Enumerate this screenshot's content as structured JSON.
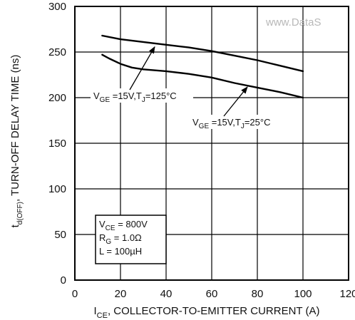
{
  "watermark": "www.DataS",
  "chart_data": {
    "type": "line",
    "title": "",
    "xlabel": {
      "main": "I",
      "sub": "CE",
      "rest": ", COLLECTOR-TO-EMITTER CURRENT (A)"
    },
    "ylabel": {
      "main": "t",
      "sub": "d(OFF)",
      "rest": ", TURN-OFF DELAY TIME (ns)"
    },
    "xlim": [
      0,
      120
    ],
    "ylim": [
      0,
      300
    ],
    "xticks": [
      0,
      20,
      40,
      60,
      80,
      100,
      120
    ],
    "yticks": [
      0,
      50,
      100,
      150,
      200,
      250,
      300
    ],
    "grid": true,
    "series": [
      {
        "name": "VGE =15V,TJ=125°C",
        "label": {
          "a": "V",
          "a_sub": "GE",
          "b": " =15V,T",
          "b_sub": "J",
          "c": "=125°C"
        },
        "x": [
          12,
          20,
          30,
          40,
          50,
          60,
          70,
          80,
          90,
          100
        ],
        "y": [
          268,
          264,
          261,
          258,
          255,
          251,
          246,
          241,
          235,
          229
        ]
      },
      {
        "name": "VGE =15V,TJ=25°C",
        "label": {
          "a": "V",
          "a_sub": "GE",
          "b": " =15V,T",
          "b_sub": "J",
          "c": "=25°C"
        },
        "x": [
          12,
          15,
          20,
          25,
          30,
          40,
          50,
          60,
          70,
          80,
          90,
          100
        ],
        "y": [
          247,
          243,
          237,
          233,
          231,
          229,
          226,
          222,
          216,
          211,
          206,
          200
        ]
      }
    ],
    "conditions_box": [
      {
        "main": "V",
        "sub": "CE",
        "rest": " = 800V"
      },
      {
        "main": "R",
        "sub": "G",
        "rest": " = 1.0Ω"
      },
      {
        "main": "L",
        "sub": "",
        "rest": " = 100µH"
      }
    ]
  }
}
